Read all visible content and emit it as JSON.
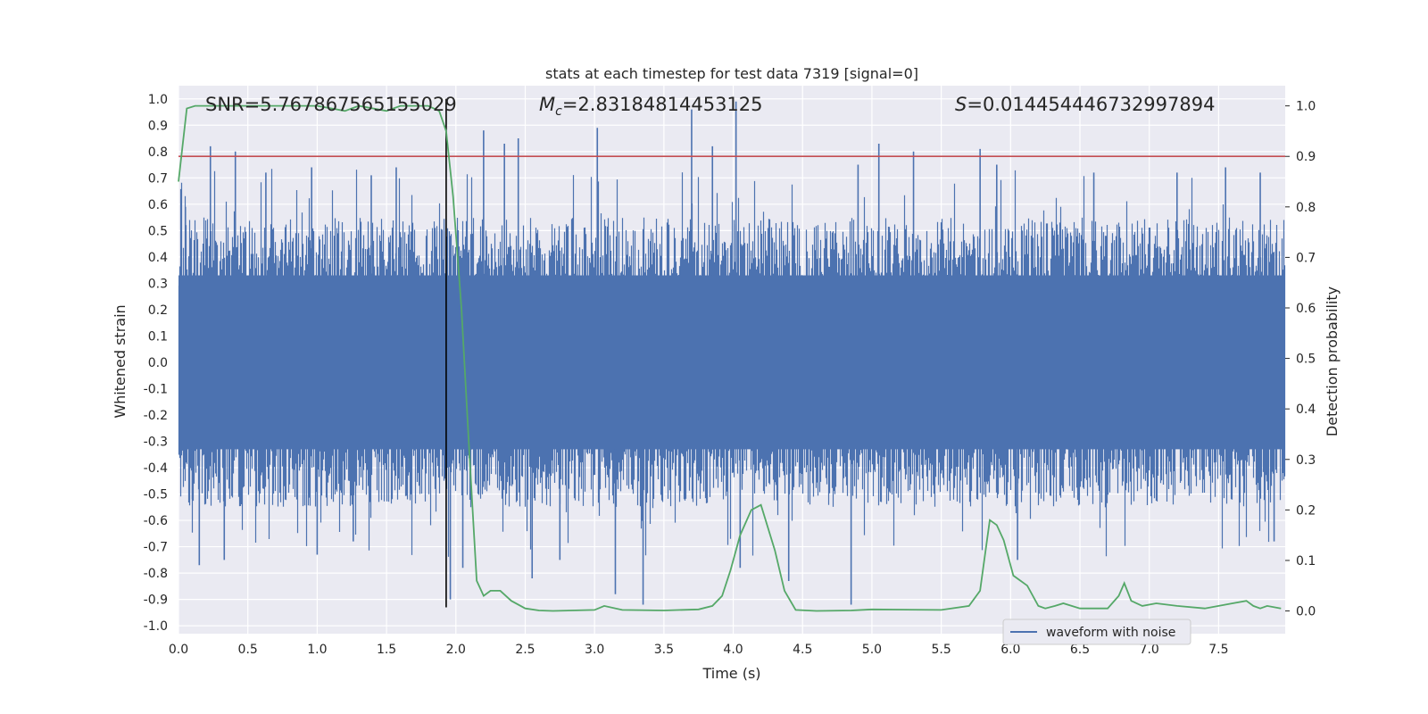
{
  "chart_data": {
    "type": "line",
    "title": "stats at each timestep for test data 7319 [signal=0]",
    "xlabel": "Time (s)",
    "ylabel": "Whitened strain",
    "ylabel_right": "Detection probability",
    "xlim": [
      0.0,
      7.98
    ],
    "ylim": [
      -1.03,
      1.05
    ],
    "ylim_right": [
      -0.045,
      1.04
    ],
    "x_ticks": [
      "0.0",
      "0.5",
      "1.0",
      "1.5",
      "2.0",
      "2.5",
      "3.0",
      "3.5",
      "4.0",
      "4.5",
      "5.0",
      "5.5",
      "6.0",
      "6.5",
      "7.0",
      "7.5"
    ],
    "y_ticks": [
      "1.0",
      "0.9",
      "0.8",
      "0.7",
      "0.6",
      "0.5",
      "0.4",
      "0.3",
      "0.2",
      "0.1",
      "0.0",
      "-0.1",
      "-0.2",
      "-0.3",
      "-0.4",
      "-0.5",
      "-0.6",
      "-0.7",
      "-0.8",
      "-0.9",
      "-1.0"
    ],
    "y_ticks_right": [
      "1.0",
      "0.9",
      "0.8",
      "0.7",
      "0.6",
      "0.5",
      "0.4",
      "0.3",
      "0.2",
      "0.1",
      "0.0"
    ],
    "grid": true,
    "legend_position": "lower-right",
    "annotations": {
      "snr": "SNR=5.767867565155029",
      "mc_symbol": "M",
      "mc_sub": "c",
      "mc_value": "=2.83184814453125",
      "s_symbol": "S",
      "s_value": "=0.014454446732997894"
    },
    "vertical_marker_x": 1.93,
    "threshold": {
      "axis": "right",
      "y": 0.9,
      "color": "#c44e52"
    },
    "series": [
      {
        "name": "waveform with noise",
        "axis": "left",
        "color": "#4c72b0",
        "style": "dense-noise",
        "envelope_typical": 0.5,
        "spikes": [
          {
            "x": 0.05,
            "y": 0.59
          },
          {
            "x": 0.1,
            "y": -0.52
          },
          {
            "x": 0.15,
            "y": -0.77
          },
          {
            "x": 0.23,
            "y": 0.82
          },
          {
            "x": 0.33,
            "y": -0.75
          },
          {
            "x": 0.41,
            "y": 0.8
          },
          {
            "x": 0.63,
            "y": 0.72
          },
          {
            "x": 0.96,
            "y": 0.74
          },
          {
            "x": 1.0,
            "y": -0.73
          },
          {
            "x": 1.26,
            "y": -0.68
          },
          {
            "x": 1.39,
            "y": 0.71
          },
          {
            "x": 1.57,
            "y": 0.74
          },
          {
            "x": 1.96,
            "y": -0.9
          },
          {
            "x": 2.05,
            "y": -0.78
          },
          {
            "x": 2.2,
            "y": 0.88
          },
          {
            "x": 2.35,
            "y": 0.83
          },
          {
            "x": 2.45,
            "y": 0.85
          },
          {
            "x": 2.55,
            "y": -0.82
          },
          {
            "x": 2.75,
            "y": -0.75
          },
          {
            "x": 3.02,
            "y": 0.89
          },
          {
            "x": 3.15,
            "y": -0.88
          },
          {
            "x": 3.35,
            "y": -0.92
          },
          {
            "x": 3.7,
            "y": 0.96
          },
          {
            "x": 3.85,
            "y": 0.82
          },
          {
            "x": 4.02,
            "y": 0.99
          },
          {
            "x": 4.05,
            "y": -0.78
          },
          {
            "x": 4.4,
            "y": -0.83
          },
          {
            "x": 4.85,
            "y": -0.92
          },
          {
            "x": 4.9,
            "y": 0.75
          },
          {
            "x": 5.05,
            "y": 0.83
          },
          {
            "x": 5.3,
            "y": 0.8
          },
          {
            "x": 5.78,
            "y": 0.81
          },
          {
            "x": 5.9,
            "y": 0.75
          },
          {
            "x": 6.05,
            "y": -0.75
          },
          {
            "x": 6.6,
            "y": 0.72
          },
          {
            "x": 7.2,
            "y": 0.72
          },
          {
            "x": 7.55,
            "y": 0.74
          },
          {
            "x": 7.8,
            "y": 0.72
          },
          {
            "x": 7.9,
            "y": -0.68
          }
        ]
      },
      {
        "name": "",
        "axis": "right",
        "color": "#55a868",
        "x": [
          0.0,
          0.06,
          0.12,
          0.5,
          0.8,
          1.0,
          1.2,
          1.3,
          1.5,
          1.6,
          1.8,
          1.88,
          1.93,
          1.98,
          2.04,
          2.1,
          2.15,
          2.2,
          2.25,
          2.32,
          2.4,
          2.5,
          2.6,
          2.7,
          3.0,
          3.07,
          3.2,
          3.5,
          3.75,
          3.85,
          3.92,
          3.98,
          4.05,
          4.13,
          4.2,
          4.3,
          4.37,
          4.45,
          4.6,
          4.85,
          5.0,
          5.5,
          5.7,
          5.78,
          5.85,
          5.9,
          5.95,
          6.02,
          6.12,
          6.2,
          6.25,
          6.32,
          6.38,
          6.5,
          6.7,
          6.78,
          6.82,
          6.87,
          6.95,
          7.05,
          7.2,
          7.4,
          7.6,
          7.7,
          7.75,
          7.8,
          7.85,
          7.95
        ],
        "y": [
          0.85,
          0.995,
          1.0,
          1.0,
          1.0,
          1.0,
          0.99,
          1.0,
          0.99,
          1.0,
          1.0,
          0.99,
          0.95,
          0.82,
          0.6,
          0.3,
          0.06,
          0.03,
          0.04,
          0.04,
          0.02,
          0.005,
          0.001,
          0.0,
          0.002,
          0.01,
          0.002,
          0.001,
          0.003,
          0.01,
          0.03,
          0.08,
          0.15,
          0.2,
          0.21,
          0.12,
          0.04,
          0.002,
          0.0,
          0.001,
          0.003,
          0.002,
          0.01,
          0.04,
          0.18,
          0.17,
          0.14,
          0.07,
          0.05,
          0.01,
          0.005,
          0.01,
          0.015,
          0.005,
          0.005,
          0.03,
          0.055,
          0.02,
          0.01,
          0.015,
          0.01,
          0.005,
          0.015,
          0.02,
          0.01,
          0.005,
          0.01,
          0.005
        ]
      }
    ]
  }
}
